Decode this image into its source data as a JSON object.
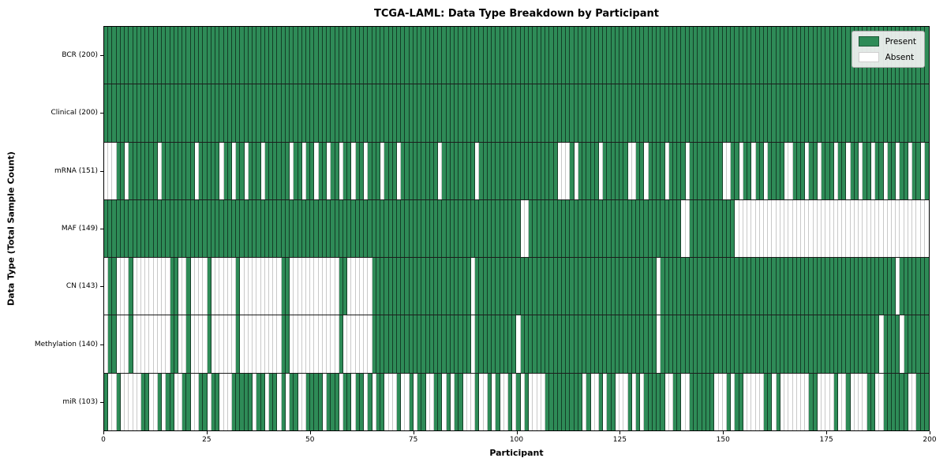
{
  "title": "TCGA-LAML: Data Type Breakdown by Participant",
  "xlabel": "Participant",
  "ylabel": "Data Type (Total Sample Count)",
  "legend": {
    "present_label": "Present",
    "absent_label": "Absent"
  },
  "colors": {
    "present": "#2e8b57",
    "absent": "#ffffff",
    "present_edge": "rgba(0,0,0,0.55)",
    "absent_edge": "#c9c9c9"
  },
  "chart_data": {
    "type": "heatmap",
    "title": "TCGA-LAML: Data Type Breakdown by Participant",
    "xlabel": "Participant",
    "ylabel": "Data Type (Total Sample Count)",
    "x_range": [
      0,
      200
    ],
    "x_ticks": [
      0,
      25,
      50,
      75,
      100,
      125,
      150,
      175,
      200
    ],
    "n_participants": 200,
    "states": {
      "1": "Present",
      "0": "Absent"
    },
    "legend_position": "upper right",
    "grid": "column and row separators",
    "rows": [
      {
        "label": "BCR (200)",
        "name": "bcr",
        "total_present": 200,
        "pattern": "11111111111111111111111111111111111111111111111111111111111111111111111111111111111111111111111111111111111111111111111111111111111111111111111111111111111111111111111111111111111111111111111111111111"
      },
      {
        "label": "Clinical (200)",
        "name": "clinical",
        "total_present": 200,
        "pattern": "11111111111111111111111111111111111111111111111111111111111111111111111111111111111111111111111111111111111111111111111111111111111111111111111111111111111111111111111111111111111111111111111111111111"
      },
      {
        "label": "mRNA (151)",
        "name": "mrna",
        "total_present": 151,
        "pattern": "00011011111110111111110111110110110111011111101101101101101101101110111011111111101111111101111111111111111111000101111101111110011011110111101111111100110110110111100111011011101101101101101101101101100111111"
      },
      {
        "label": "MAF (149)",
        "name": "maf",
        "total_present": 149,
        "pattern": "11111111111111111111111111111111111111111111111111111111111111111111111111111111111111111111111111111001111111111111111111111111111111111111001111111111100000000000000000000000000000000000000000000000"
      },
      {
        "label": "CN (143)",
        "name": "cn",
        "total_present": 143,
        "pattern": "01100010000000001100100001000000100000000001100000000000011000000111111111111111111111111011111111111111111111111111111111111111111111011111111111111111111111111111111111111111111111111111111101111111"
      },
      {
        "label": "Methylation (140)",
        "name": "methylation",
        "total_present": 140,
        "pattern": "01100010000000001100100001000000100000000001100000000000010000000111111111111111111111111011111111110111111111111111111111111111111111011111111111111111111111111111111111111111111111111111011110111111"
      },
      {
        "label": "miR (103)",
        "name": "mir",
        "total_present": 103,
        "pattern": "10010000011001011001100110110001111101101101011001111011101101101011000100101100110101100010010100101010000111111111010010110001010111110011001111110001011000001101000000011000010010000110011111100111"
      }
    ]
  }
}
